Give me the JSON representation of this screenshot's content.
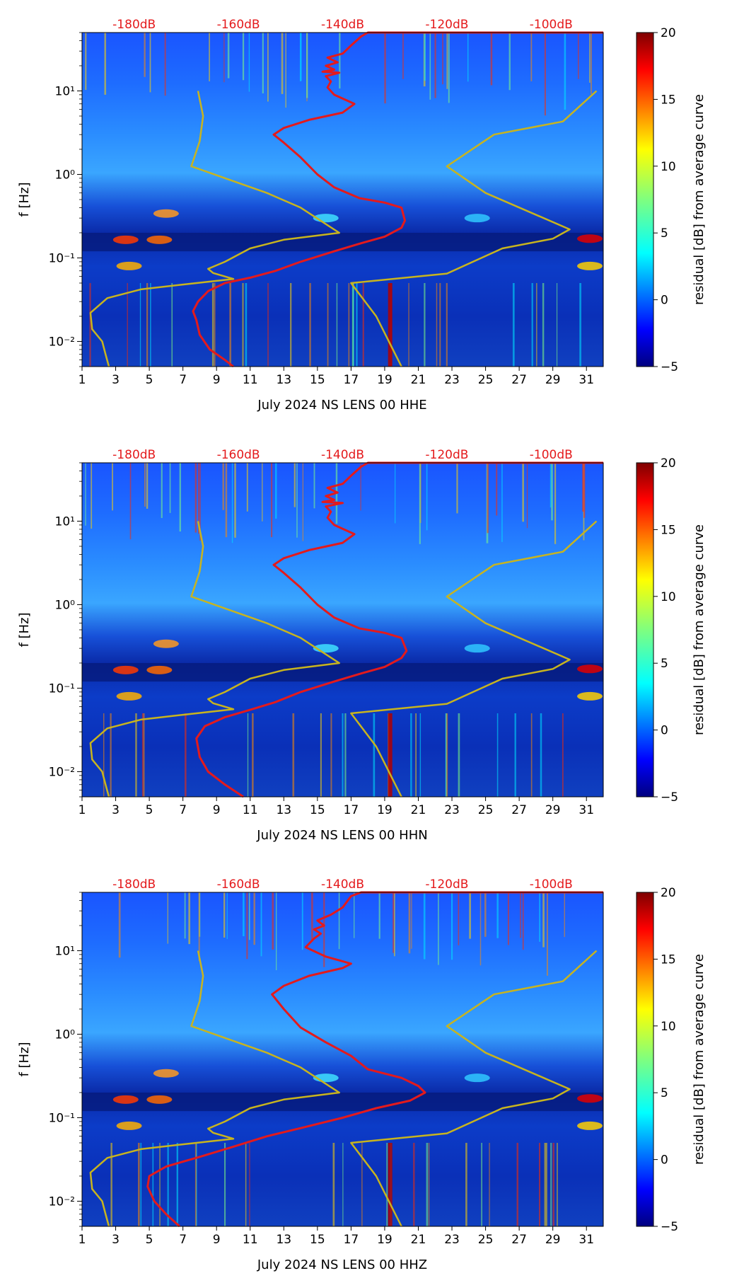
{
  "chart_data": [
    {
      "type": "heatmap",
      "station": "NS LENS 00 HHE",
      "xlabel": "July 2024 NS LENS 00 HHE",
      "ylabel": "f [Hz]",
      "colorbar_label": "residual [dB] from average curve",
      "xlim": [
        1,
        32
      ],
      "ylim_hz": [
        0.005,
        50
      ],
      "zlim_db": [
        -5,
        20
      ],
      "x_ticks": [
        "1",
        "3",
        "5",
        "7",
        "9",
        "11",
        "13",
        "15",
        "17",
        "19",
        "21",
        "23",
        "25",
        "27",
        "29",
        "31"
      ],
      "y_ticks": [
        "10⁻²",
        "10⁻¹",
        "10⁰",
        "10¹"
      ],
      "colorbar_ticks": [
        "−5",
        "0",
        "5",
        "10",
        "15",
        "20"
      ],
      "top_db_ticks": [
        "-180dB",
        "-160dB",
        "-140dB",
        "-120dB",
        "-100dB"
      ],
      "series": [
        {
          "name": "average PSD curve (red, top dB axis)",
          "color": "#e41a1c",
          "points_day_hz": [
            [
              10.0,
              0.005
            ],
            [
              9.5,
              0.006
            ],
            [
              8.6,
              0.008
            ],
            [
              8.0,
              0.012
            ],
            [
              7.8,
              0.018
            ],
            [
              7.6,
              0.023
            ],
            [
              7.9,
              0.03
            ],
            [
              8.5,
              0.04
            ],
            [
              9.5,
              0.05
            ],
            [
              11,
              0.058
            ],
            [
              12.5,
              0.07
            ],
            [
              14,
              0.09
            ],
            [
              16,
              0.12
            ],
            [
              17.6,
              0.15
            ],
            [
              19,
              0.18
            ],
            [
              20,
              0.23
            ],
            [
              20.2,
              0.28
            ],
            [
              20,
              0.4
            ],
            [
              19,
              0.46
            ],
            [
              17.5,
              0.52
            ],
            [
              16,
              0.7
            ],
            [
              15,
              1.0
            ],
            [
              14,
              1.6
            ],
            [
              13,
              2.4
            ],
            [
              12.4,
              3.0
            ],
            [
              13,
              3.6
            ],
            [
              14.5,
              4.5
            ],
            [
              16.5,
              5.5
            ],
            [
              17.2,
              7.0
            ],
            [
              16,
              9.0
            ],
            [
              15.6,
              11
            ],
            [
              15.8,
              13
            ],
            [
              15.5,
              15
            ],
            [
              16.3,
              16.5
            ],
            [
              15.3,
              17
            ],
            [
              16,
              18
            ],
            [
              15.5,
              20
            ],
            [
              16.2,
              22
            ],
            [
              15.6,
              25
            ],
            [
              16.5,
              28
            ],
            [
              17,
              35
            ],
            [
              17.6,
              45
            ],
            [
              18,
              50
            ],
            [
              32,
              50
            ]
          ]
        },
        {
          "name": "low noise model (yellow)",
          "color": "#c8b41e",
          "points_day_hz": [
            [
              2.6,
              0.005
            ],
            [
              2.4,
              0.007
            ],
            [
              2.2,
              0.01
            ],
            [
              1.6,
              0.014
            ],
            [
              1.5,
              0.022
            ],
            [
              2.5,
              0.033
            ],
            [
              4.5,
              0.042
            ],
            [
              7,
              0.048
            ],
            [
              10,
              0.056
            ],
            [
              8.8,
              0.066
            ],
            [
              8.5,
              0.074
            ],
            [
              9.5,
              0.09
            ],
            [
              11,
              0.13
            ],
            [
              13,
              0.165
            ],
            [
              16.3,
              0.2
            ],
            [
              14,
              0.4
            ],
            [
              12,
              0.6
            ],
            [
              7.5,
              1.25
            ],
            [
              8,
              2.5
            ],
            [
              8.2,
              5.0
            ],
            [
              7.9,
              10
            ]
          ]
        },
        {
          "name": "high noise model (yellow)",
          "color": "#c8b41e",
          "points_day_hz": [
            [
              20,
              0.005
            ],
            [
              18.5,
              0.02
            ],
            [
              17,
              0.05
            ],
            [
              22.7,
              0.065
            ],
            [
              26,
              0.13
            ],
            [
              29,
              0.17
            ],
            [
              30,
              0.22
            ],
            [
              25,
              0.6
            ],
            [
              22.7,
              1.25
            ],
            [
              25.5,
              3.0
            ],
            [
              29.6,
              4.3
            ],
            [
              31.6,
              10
            ]
          ]
        }
      ]
    },
    {
      "type": "heatmap",
      "station": "NS LENS 00 HHN",
      "xlabel": "July 2024 NS LENS 00 HHN",
      "ylabel": "f [Hz]",
      "colorbar_label": "residual [dB] from average curve",
      "xlim": [
        1,
        32
      ],
      "ylim_hz": [
        0.005,
        50
      ],
      "zlim_db": [
        -5,
        20
      ],
      "x_ticks": [
        "1",
        "3",
        "5",
        "7",
        "9",
        "11",
        "13",
        "15",
        "17",
        "19",
        "21",
        "23",
        "25",
        "27",
        "29",
        "31"
      ],
      "y_ticks": [
        "10⁻²",
        "10⁻¹",
        "10⁰",
        "10¹"
      ],
      "colorbar_ticks": [
        "−5",
        "0",
        "5",
        "10",
        "15",
        "20"
      ],
      "top_db_ticks": [
        "-180dB",
        "-160dB",
        "-140dB",
        "-120dB",
        "-100dB"
      ],
      "series": [
        {
          "name": "average PSD curve (red, top dB axis)",
          "color": "#e41a1c",
          "points_day_hz": [
            [
              10.6,
              0.005
            ],
            [
              9.5,
              0.007
            ],
            [
              8.5,
              0.01
            ],
            [
              8.0,
              0.015
            ],
            [
              7.8,
              0.025
            ],
            [
              8.3,
              0.035
            ],
            [
              9.5,
              0.045
            ],
            [
              11,
              0.055
            ],
            [
              12.5,
              0.068
            ],
            [
              14,
              0.09
            ],
            [
              16,
              0.12
            ],
            [
              17.6,
              0.15
            ],
            [
              19,
              0.18
            ],
            [
              20,
              0.23
            ],
            [
              20.3,
              0.28
            ],
            [
              20,
              0.4
            ],
            [
              19,
              0.46
            ],
            [
              17.5,
              0.52
            ],
            [
              16,
              0.7
            ],
            [
              15,
              1.0
            ],
            [
              14,
              1.6
            ],
            [
              13,
              2.4
            ],
            [
              12.4,
              3.0
            ],
            [
              13,
              3.6
            ],
            [
              14.5,
              4.5
            ],
            [
              16.5,
              5.5
            ],
            [
              17.2,
              7.0
            ],
            [
              16,
              9.0
            ],
            [
              15.6,
              11
            ],
            [
              15.8,
              13
            ],
            [
              15.5,
              15
            ],
            [
              16.5,
              16.5
            ],
            [
              15.3,
              17
            ],
            [
              16,
              18
            ],
            [
              15.5,
              20
            ],
            [
              16.2,
              22
            ],
            [
              15.6,
              25
            ],
            [
              16.5,
              28
            ],
            [
              17,
              35
            ],
            [
              17.6,
              45
            ],
            [
              18,
              50
            ],
            [
              32,
              50
            ]
          ]
        },
        {
          "name": "low noise model (yellow)",
          "color": "#c8b41e",
          "points_day_hz": [
            [
              2.6,
              0.005
            ],
            [
              2.4,
              0.007
            ],
            [
              2.2,
              0.01
            ],
            [
              1.6,
              0.014
            ],
            [
              1.5,
              0.022
            ],
            [
              2.5,
              0.033
            ],
            [
              4.5,
              0.042
            ],
            [
              7,
              0.048
            ],
            [
              10,
              0.056
            ],
            [
              8.8,
              0.066
            ],
            [
              8.5,
              0.074
            ],
            [
              9.5,
              0.09
            ],
            [
              11,
              0.13
            ],
            [
              13,
              0.165
            ],
            [
              16.3,
              0.2
            ],
            [
              14,
              0.4
            ],
            [
              12,
              0.6
            ],
            [
              7.5,
              1.25
            ],
            [
              8,
              2.5
            ],
            [
              8.2,
              5.0
            ],
            [
              7.9,
              10
            ]
          ]
        },
        {
          "name": "high noise model (yellow)",
          "color": "#c8b41e",
          "points_day_hz": [
            [
              20,
              0.005
            ],
            [
              18.5,
              0.02
            ],
            [
              17,
              0.05
            ],
            [
              22.7,
              0.065
            ],
            [
              26,
              0.13
            ],
            [
              29,
              0.17
            ],
            [
              30,
              0.22
            ],
            [
              25,
              0.6
            ],
            [
              22.7,
              1.25
            ],
            [
              25.5,
              3.0
            ],
            [
              29.6,
              4.3
            ],
            [
              31.6,
              10
            ]
          ]
        }
      ]
    },
    {
      "type": "heatmap",
      "station": "NS LENS 00 HHZ",
      "xlabel": "July 2024 NS LENS 00 HHZ",
      "ylabel": "f [Hz]",
      "colorbar_label": "residual [dB] from average curve",
      "xlim": [
        1,
        32
      ],
      "ylim_hz": [
        0.005,
        50
      ],
      "zlim_db": [
        -5,
        20
      ],
      "x_ticks": [
        "1",
        "3",
        "5",
        "7",
        "9",
        "11",
        "13",
        "15",
        "17",
        "19",
        "21",
        "23",
        "25",
        "27",
        "29",
        "31"
      ],
      "y_ticks": [
        "10⁻²",
        "10⁻¹",
        "10⁰",
        "10¹"
      ],
      "colorbar_ticks": [
        "−5",
        "0",
        "5",
        "10",
        "15",
        "20"
      ],
      "top_db_ticks": [
        "-180dB",
        "-160dB",
        "-140dB",
        "-120dB",
        "-100dB"
      ],
      "series": [
        {
          "name": "average PSD curve (red, top dB axis)",
          "color": "#e41a1c",
          "points_day_hz": [
            [
              6.8,
              0.005
            ],
            [
              6.0,
              0.007
            ],
            [
              5.3,
              0.01
            ],
            [
              4.9,
              0.015
            ],
            [
              5.0,
              0.02
            ],
            [
              6.0,
              0.026
            ],
            [
              8,
              0.034
            ],
            [
              10,
              0.045
            ],
            [
              12,
              0.06
            ],
            [
              14,
              0.075
            ],
            [
              16.5,
              0.1
            ],
            [
              18.5,
              0.13
            ],
            [
              20.5,
              0.16
            ],
            [
              21.4,
              0.2
            ],
            [
              21,
              0.24
            ],
            [
              20,
              0.3
            ],
            [
              18,
              0.38
            ],
            [
              17,
              0.55
            ],
            [
              15.5,
              0.8
            ],
            [
              14,
              1.2
            ],
            [
              13,
              2.0
            ],
            [
              12.3,
              3.0
            ],
            [
              13,
              3.8
            ],
            [
              14.5,
              5.0
            ],
            [
              16.5,
              6.2
            ],
            [
              17.0,
              7.0
            ],
            [
              15.5,
              8.5
            ],
            [
              14.3,
              11
            ],
            [
              14.8,
              14
            ],
            [
              15.2,
              16
            ],
            [
              14.8,
              18
            ],
            [
              15.4,
              20
            ],
            [
              15.0,
              23
            ],
            [
              15.8,
              27
            ],
            [
              16.5,
              33
            ],
            [
              17,
              45
            ],
            [
              17.6,
              50
            ],
            [
              32,
              50
            ]
          ]
        },
        {
          "name": "low noise model (yellow)",
          "color": "#c8b41e",
          "points_day_hz": [
            [
              2.6,
              0.005
            ],
            [
              2.4,
              0.007
            ],
            [
              2.2,
              0.01
            ],
            [
              1.6,
              0.014
            ],
            [
              1.5,
              0.022
            ],
            [
              2.5,
              0.033
            ],
            [
              4.5,
              0.042
            ],
            [
              7,
              0.048
            ],
            [
              10,
              0.056
            ],
            [
              8.8,
              0.066
            ],
            [
              8.5,
              0.074
            ],
            [
              9.5,
              0.09
            ],
            [
              11,
              0.13
            ],
            [
              13,
              0.165
            ],
            [
              16.3,
              0.2
            ],
            [
              14,
              0.4
            ],
            [
              12,
              0.6
            ],
            [
              7.5,
              1.25
            ],
            [
              8,
              2.5
            ],
            [
              8.2,
              5.0
            ],
            [
              7.9,
              10
            ]
          ]
        },
        {
          "name": "high noise model (yellow)",
          "color": "#c8b41e",
          "points_day_hz": [
            [
              20,
              0.005
            ],
            [
              18.5,
              0.02
            ],
            [
              17,
              0.05
            ],
            [
              22.7,
              0.065
            ],
            [
              26,
              0.13
            ],
            [
              29,
              0.17
            ],
            [
              30,
              0.22
            ],
            [
              25,
              0.6
            ],
            [
              22.7,
              1.25
            ],
            [
              25.5,
              3.0
            ],
            [
              29.6,
              4.3
            ],
            [
              31.6,
              10
            ]
          ]
        }
      ]
    }
  ]
}
